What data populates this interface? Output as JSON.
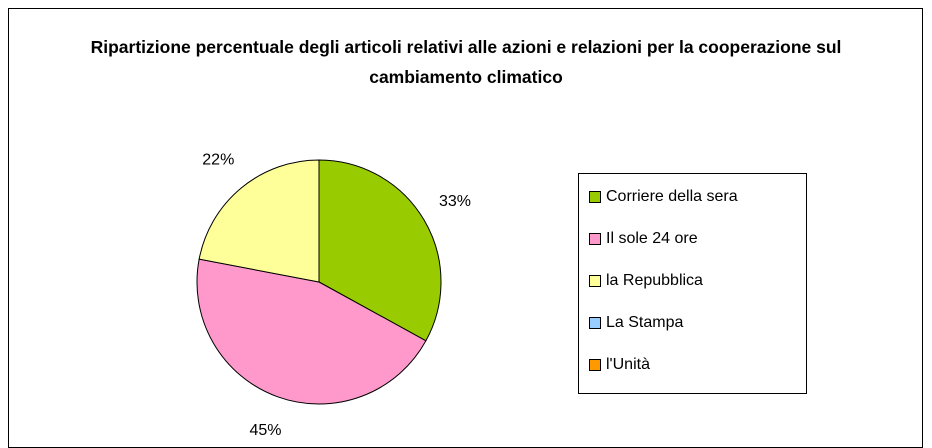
{
  "chart_data": {
    "type": "pie",
    "title": "Ripartizione percentuale degli articoli relativi alle azioni e relazioni per la cooperazione sul cambiamento climatico",
    "categories": [
      "Corriere della sera",
      "Il sole 24 ore",
      "la Repubblica",
      "La Stampa",
      "l'Unità"
    ],
    "values": [
      33,
      45,
      22,
      0,
      0
    ],
    "value_labels": [
      "33%",
      "45%",
      "22%",
      null,
      null
    ],
    "colors": [
      "#99cc00",
      "#ff99cc",
      "#ffff99",
      "#99ccff",
      "#ff9900"
    ],
    "legend": "right"
  }
}
